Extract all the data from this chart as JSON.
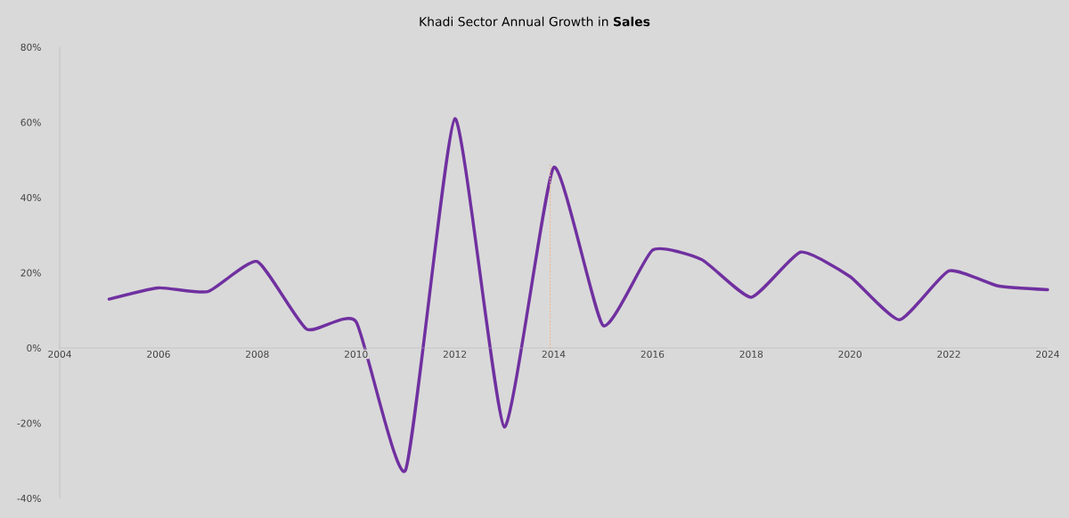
{
  "chart_data": {
    "type": "line",
    "title": "Khadi Sector Annual Growth in **Sales**",
    "x": [
      2005,
      2006,
      2007,
      2008,
      2009,
      2010,
      2011,
      2012,
      2013,
      2014,
      2015,
      2016,
      2017,
      2018,
      2019,
      2020,
      2021,
      2022,
      2023,
      2024
    ],
    "series": [
      {
        "color": "#7030a0",
        "values": [
          13,
          16,
          15,
          23,
          5,
          7,
          -32.5,
          61,
          -21,
          48,
          6,
          26,
          23.5,
          13.5,
          25.5,
          19,
          7.5,
          20.5,
          16.5,
          15.5
        ]
      },
      {
        "color": "#f4b183",
        "line_style": "dotted",
        "x": [
          2013.93,
          2013.93
        ],
        "values": [
          0,
          49
        ]
      }
    ],
    "xlim": [
      2004,
      2024
    ],
    "ylim": [
      -40,
      80
    ],
    "xticks": [
      2004,
      2006,
      2008,
      2010,
      2012,
      2014,
      2016,
      2018,
      2020,
      2022,
      2024
    ],
    "yticks": [
      {
        "value": -40,
        "label": "-40%"
      },
      {
        "value": -20,
        "label": "-20%"
      },
      {
        "value": 0,
        "label": "0%"
      },
      {
        "value": 20,
        "label": "20%"
      },
      {
        "value": 40,
        "label": "40%"
      },
      {
        "value": 60,
        "label": "60%"
      },
      {
        "value": 80,
        "label": "80%"
      }
    ],
    "grid": false,
    "legend": false,
    "marker": "none",
    "line_style": "solid"
  }
}
